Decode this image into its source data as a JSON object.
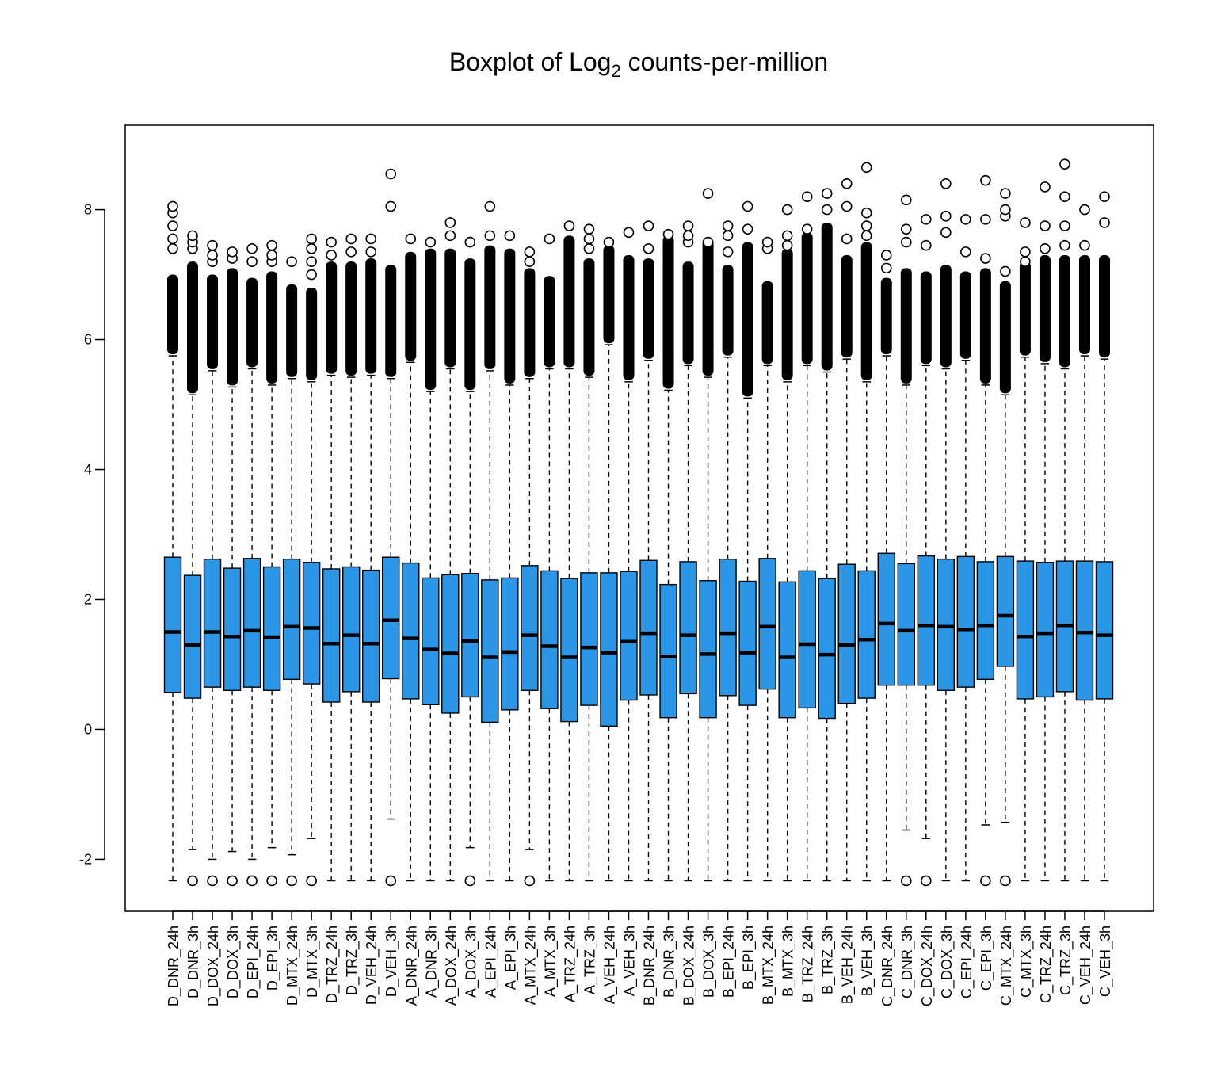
{
  "chart_data": {
    "type": "boxplot",
    "title_main": "Boxplot of Log",
    "title_sub": "2",
    "title_rest": " counts-per-million",
    "ylim": [
      -2.8,
      9.3
    ],
    "y_ticks": [
      -2,
      0,
      2,
      4,
      6,
      8
    ],
    "y_tick_labels": [
      "-2",
      "0",
      "2",
      "4",
      "6",
      "8"
    ],
    "grid": false,
    "box_color": "#2b96e6",
    "categories": [
      "D_DNR_24h",
      "D_DNR_3h",
      "D_DOX_24h",
      "D_DOX_3h",
      "D_EPI_24h",
      "D_EPI_3h",
      "D_MTX_24h",
      "D_MTX_3h",
      "D_TRZ_24h",
      "D_TRZ_3h",
      "D_VEH_24h",
      "D_VEH_3h",
      "A_DNR_24h",
      "A_DNR_3h",
      "A_DOX_24h",
      "A_DOX_3h",
      "A_EPI_24h",
      "A_EPI_3h",
      "A_MTX_24h",
      "A_MTX_3h",
      "A_TRZ_24h",
      "A_TRZ_3h",
      "A_VEH_24h",
      "A_VEH_3h",
      "B_DNR_24h",
      "B_DNR_3h",
      "B_DOX_24h",
      "B_DOX_3h",
      "B_EPI_24h",
      "B_EPI_3h",
      "B_MTX_24h",
      "B_MTX_3h",
      "B_TRZ_24h",
      "B_TRZ_3h",
      "B_VEH_24h",
      "B_VEH_3h",
      "C_DNR_24h",
      "C_DNR_3h",
      "C_DOX_24h",
      "C_DOX_3h",
      "C_EPI_24h",
      "C_EPI_3h",
      "C_MTX_24h",
      "C_MTX_3h",
      "C_TRZ_24h",
      "C_TRZ_3h",
      "C_VEH_24h",
      "C_VEH_3h"
    ],
    "q1": [
      0.57,
      0.48,
      0.65,
      0.6,
      0.65,
      0.6,
      0.77,
      0.7,
      0.42,
      0.58,
      0.42,
      0.78,
      0.47,
      0.38,
      0.25,
      0.5,
      0.11,
      0.3,
      0.6,
      0.32,
      0.12,
      0.37,
      0.05,
      0.45,
      0.53,
      0.18,
      0.55,
      0.18,
      0.52,
      0.37,
      0.62,
      0.18,
      0.33,
      0.17,
      0.4,
      0.48,
      0.68,
      0.68,
      0.68,
      0.6,
      0.65,
      0.77,
      0.97,
      0.47,
      0.5,
      0.58,
      0.45,
      0.47
    ],
    "median": [
      1.5,
      1.3,
      1.5,
      1.43,
      1.52,
      1.42,
      1.58,
      1.56,
      1.32,
      1.45,
      1.32,
      1.68,
      1.4,
      1.23,
      1.17,
      1.36,
      1.11,
      1.19,
      1.45,
      1.28,
      1.11,
      1.26,
      1.18,
      1.35,
      1.48,
      1.12,
      1.45,
      1.16,
      1.48,
      1.18,
      1.58,
      1.11,
      1.31,
      1.15,
      1.3,
      1.38,
      1.63,
      1.52,
      1.6,
      1.58,
      1.54,
      1.6,
      1.75,
      1.43,
      1.48,
      1.6,
      1.49,
      1.45
    ],
    "q3": [
      2.65,
      2.37,
      2.62,
      2.48,
      2.63,
      2.5,
      2.62,
      2.57,
      2.47,
      2.5,
      2.45,
      2.65,
      2.56,
      2.33,
      2.38,
      2.4,
      2.3,
      2.33,
      2.52,
      2.44,
      2.32,
      2.41,
      2.41,
      2.43,
      2.6,
      2.23,
      2.58,
      2.29,
      2.62,
      2.28,
      2.63,
      2.27,
      2.44,
      2.32,
      2.54,
      2.44,
      2.71,
      2.55,
      2.67,
      2.62,
      2.66,
      2.58,
      2.66,
      2.59,
      2.57,
      2.59,
      2.59,
      2.58
    ],
    "whisker_low": [
      -2.33,
      -1.85,
      -2.0,
      -1.88,
      -2.0,
      -1.82,
      -1.93,
      -1.68,
      -2.33,
      -2.33,
      -2.33,
      -1.38,
      -2.33,
      -2.33,
      -2.33,
      -1.82,
      -2.33,
      -2.33,
      -1.85,
      -2.33,
      -2.33,
      -2.33,
      -2.33,
      -2.33,
      -2.33,
      -2.33,
      -2.33,
      -2.33,
      -2.33,
      -2.33,
      -2.33,
      -2.33,
      -2.33,
      -2.33,
      -2.33,
      -2.33,
      -2.33,
      -1.55,
      -1.68,
      -2.33,
      -2.33,
      -1.47,
      -1.43,
      -2.33,
      -2.33,
      -2.33,
      -2.33,
      -2.33
    ],
    "whisker_high": [
      5.75,
      5.15,
      5.52,
      5.27,
      5.55,
      5.3,
      5.4,
      5.35,
      5.45,
      5.42,
      5.45,
      5.4,
      5.65,
      5.2,
      5.55,
      5.2,
      5.52,
      5.3,
      5.4,
      5.55,
      5.55,
      5.42,
      5.92,
      5.35,
      5.68,
      5.22,
      5.6,
      5.42,
      5.73,
      5.1,
      5.6,
      5.35,
      5.6,
      5.5,
      5.7,
      5.35,
      5.75,
      5.3,
      5.6,
      5.55,
      5.68,
      5.3,
      5.15,
      5.73,
      5.63,
      5.55,
      5.75,
      5.7
    ],
    "outlier_band_top": [
      7.0,
      7.2,
      7.0,
      7.1,
      6.95,
      7.05,
      6.85,
      6.8,
      7.2,
      7.2,
      7.25,
      7.15,
      7.35,
      7.4,
      7.4,
      7.25,
      7.45,
      7.4,
      7.1,
      6.98,
      7.6,
      7.25,
      7.45,
      7.3,
      7.25,
      7.6,
      7.2,
      7.55,
      7.15,
      7.5,
      6.9,
      7.4,
      7.65,
      7.8,
      7.3,
      7.5,
      6.95,
      7.1,
      7.05,
      7.15,
      7.05,
      7.1,
      6.9,
      7.2,
      7.3,
      7.3,
      7.3,
      7.3
    ],
    "outliers_high": [
      [
        7.4,
        7.55,
        7.75,
        7.95,
        8.05
      ],
      [
        7.4,
        7.5,
        7.6
      ],
      [
        7.2,
        7.3,
        7.45
      ],
      [
        7.25,
        7.35
      ],
      [
        7.2,
        7.4
      ],
      [
        7.2,
        7.3,
        7.45
      ],
      [
        7.2
      ],
      [
        7.0,
        7.2,
        7.4,
        7.55
      ],
      [
        7.3,
        7.5
      ],
      [
        7.35,
        7.55
      ],
      [
        7.35,
        7.55
      ],
      [
        8.05,
        8.55
      ],
      [
        7.55
      ],
      [
        7.5
      ],
      [
        7.6,
        7.8
      ],
      [
        7.5
      ],
      [
        7.6,
        8.05
      ],
      [
        7.6
      ],
      [
        7.2,
        7.35
      ],
      [
        7.55
      ],
      [
        7.75
      ],
      [
        7.4,
        7.55,
        7.7
      ],
      [
        7.5
      ],
      [
        7.65
      ],
      [
        7.4,
        7.75
      ],
      [
        7.62
      ],
      [
        7.5,
        7.6,
        7.75
      ],
      [
        7.5,
        8.25
      ],
      [
        7.35,
        7.6,
        7.75
      ],
      [
        7.7,
        8.05
      ],
      [
        7.4,
        7.5
      ],
      [
        7.45,
        7.6,
        8.0
      ],
      [
        7.7,
        8.2
      ],
      [
        8.0,
        8.25
      ],
      [
        7.55,
        8.05,
        8.4
      ],
      [
        7.6,
        7.75,
        7.95,
        8.65
      ],
      [
        7.1,
        7.3
      ],
      [
        7.5,
        7.7,
        8.15
      ],
      [
        7.45,
        7.85
      ],
      [
        7.65,
        7.9,
        8.4
      ],
      [
        7.35,
        7.85
      ],
      [
        7.25,
        7.85,
        8.45
      ],
      [
        7.05,
        7.9,
        8.0,
        8.25
      ],
      [
        7.2,
        7.35,
        7.8
      ],
      [
        7.4,
        7.75,
        8.35
      ],
      [
        7.45,
        7.75,
        8.2,
        8.7
      ],
      [
        7.45,
        8.0
      ],
      [
        7.8,
        8.2
      ]
    ],
    "outliers_low": [
      [],
      [
        -2.33
      ],
      [
        -2.33
      ],
      [
        -2.33
      ],
      [
        -2.33
      ],
      [
        -2.33
      ],
      [
        -2.33
      ],
      [
        -2.33
      ],
      [],
      [],
      [],
      [
        -2.33
      ],
      [],
      [],
      [],
      [
        -2.33
      ],
      [],
      [],
      [
        -2.33
      ],
      [],
      [],
      [],
      [],
      [],
      [],
      [],
      [],
      [],
      [],
      [],
      [],
      [],
      [],
      [],
      [],
      [],
      [],
      [
        -2.33
      ],
      [
        -2.33
      ],
      [],
      [],
      [
        -2.33
      ],
      [
        -2.33
      ],
      [],
      [],
      [],
      [],
      []
    ]
  }
}
